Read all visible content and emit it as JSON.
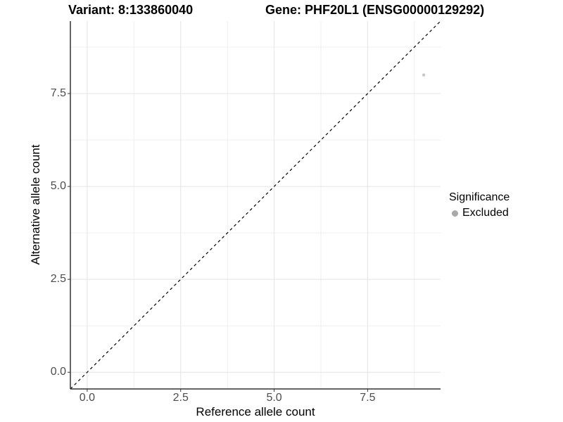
{
  "figure": {
    "background": "#ffffff"
  },
  "chart_data": {
    "type": "scatter",
    "title_left": "Variant: 8:133860040",
    "title_right": "Gene: PHF20L1 (ENSG00000129292)",
    "xlabel": "Reference allele count",
    "ylabel": "Alternative allele count",
    "xlim": [
      -0.45,
      9.45
    ],
    "ylim": [
      -0.45,
      9.45
    ],
    "x_ticks": [
      0,
      2.5,
      5,
      7.5
    ],
    "x_tick_labels": [
      "0.0",
      "2.5",
      "5.0",
      "7.5"
    ],
    "y_ticks": [
      0,
      2.5,
      5,
      7.5
    ],
    "y_tick_labels": [
      "0.0",
      "2.5",
      "5.0",
      "7.5"
    ],
    "x_minor_ticks": [
      1.25,
      3.75,
      6.25,
      8.75
    ],
    "y_minor_ticks": [
      1.25,
      3.75,
      6.25,
      8.75
    ],
    "grid": true,
    "legend_position": "right",
    "points": [
      {
        "x": 9,
        "y": 8,
        "series": "Excluded",
        "color": "#c8c8c8",
        "radius": 2.2
      }
    ],
    "reference_line": {
      "type": "identity",
      "equation": "y = x",
      "style": "dashed",
      "color": "#000000"
    },
    "legend": {
      "title": "Significance",
      "items": [
        {
          "label": "Excluded",
          "color": "#a8a8a8"
        }
      ]
    },
    "colors": {
      "major_grid": "#e4e4e4",
      "minor_grid": "#efefef",
      "axis_line": "#333333",
      "tick_label": "#4d4d4d"
    }
  }
}
